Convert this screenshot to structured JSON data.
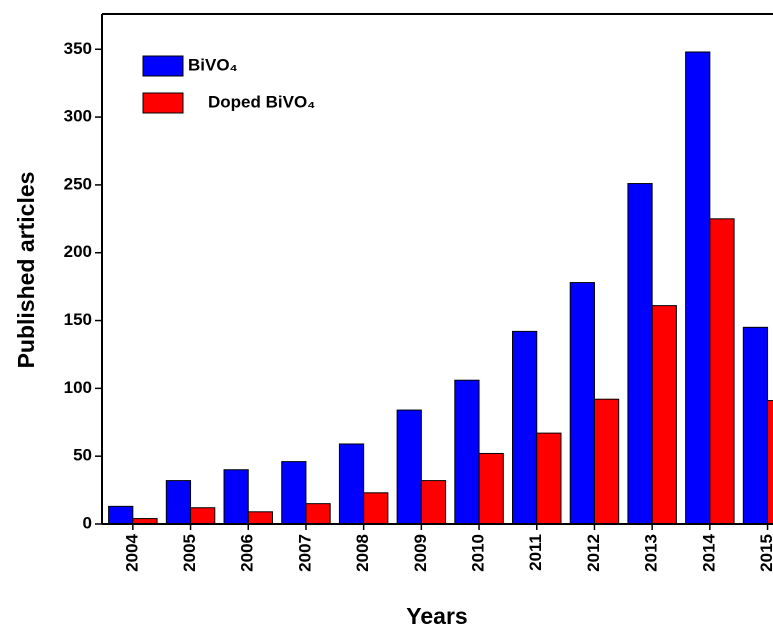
{
  "chart_data": {
    "type": "bar",
    "categories": [
      "2004",
      "2005",
      "2006",
      "2007",
      "2008",
      "2009",
      "2010",
      "2011",
      "2012",
      "2013",
      "2014",
      "2015"
    ],
    "series": [
      {
        "name": "BiVO₄",
        "color": "#0000ff",
        "values": [
          13,
          32,
          40,
          46,
          59,
          84,
          106,
          142,
          178,
          251,
          348,
          145
        ]
      },
      {
        "name": "Doped BiVO₄",
        "color": "#ff0000",
        "values": [
          4,
          12,
          9,
          15,
          23,
          32,
          52,
          67,
          92,
          161,
          225,
          91
        ]
      }
    ],
    "xlabel": "Years",
    "ylabel": "Published articles",
    "ylim": [
      0,
      376
    ],
    "yticks": [
      0,
      50,
      100,
      150,
      200,
      250,
      300,
      350
    ],
    "legend": "upper left"
  }
}
